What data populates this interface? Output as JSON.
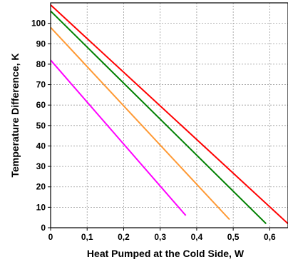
{
  "chart_data": {
    "type": "line",
    "title": "",
    "xlabel": "Heat Pumped at the Cold Side, W",
    "ylabel": "Temperature Difference, K",
    "xlim": [
      0,
      0.65
    ],
    "ylim": [
      0,
      110
    ],
    "x_ticks": [
      0,
      0.1,
      0.2,
      0.3,
      0.4,
      0.5,
      0.6
    ],
    "x_tick_labels": [
      "0",
      "0,1",
      "0,2",
      "0,3",
      "0,4",
      "0,5",
      "0,6"
    ],
    "y_ticks": [
      0,
      10,
      20,
      30,
      40,
      50,
      60,
      70,
      80,
      90,
      100
    ],
    "y_tick_labels": [
      "0",
      "10",
      "20",
      "30",
      "40",
      "50",
      "60",
      "70",
      "80",
      "90",
      "100"
    ],
    "grid": true,
    "legend": "none",
    "series": [
      {
        "color": "#ff0000",
        "x": [
          0,
          0.65
        ],
        "y": [
          109,
          2
        ]
      },
      {
        "color": "#008000",
        "x": [
          0,
          0.59
        ],
        "y": [
          106,
          2
        ]
      },
      {
        "color": "#ff9933",
        "x": [
          0,
          0.49
        ],
        "y": [
          98,
          4
        ]
      },
      {
        "color": "#ff00ff",
        "x": [
          0,
          0.37
        ],
        "y": [
          82,
          6
        ]
      }
    ]
  }
}
